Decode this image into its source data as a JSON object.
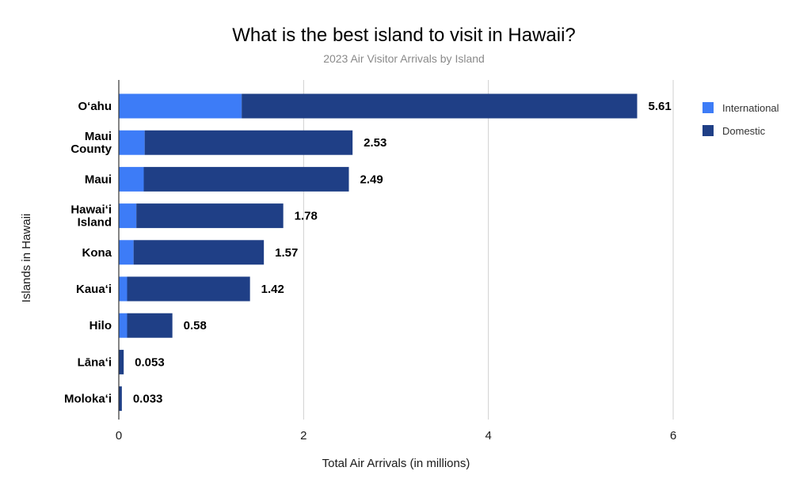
{
  "chart_data": {
    "type": "bar",
    "orientation": "horizontal",
    "stacked": true,
    "title": "What is the best island to visit in Hawaii?",
    "subtitle": "2023 Air Visitor Arrivals by Island",
    "xlabel": "Total Air Arrivals (in millions)",
    "ylabel": "Islands in Hawaii",
    "categories": [
      "O‘ahu",
      "Maui County",
      "Maui",
      "Hawai‘i Island",
      "Kona",
      "Kaua‘i",
      "Hilo",
      "Lāna‘i",
      "Moloka‘i"
    ],
    "category_lines": [
      [
        "O‘ahu"
      ],
      [
        "Maui",
        "County"
      ],
      [
        "Maui"
      ],
      [
        "Hawai‘i",
        "Island"
      ],
      [
        "Kona"
      ],
      [
        "Kaua‘i"
      ],
      [
        "Hilo"
      ],
      [
        "Lāna‘i"
      ],
      [
        "Moloka‘i"
      ]
    ],
    "series": [
      {
        "name": "International",
        "color": "#3d7cf7",
        "values": [
          1.33,
          0.28,
          0.27,
          0.19,
          0.16,
          0.09,
          0.09,
          0.004,
          0.002
        ]
      },
      {
        "name": "Domestic",
        "color": "#1f3f86",
        "values": [
          4.28,
          2.25,
          2.22,
          1.59,
          1.41,
          1.33,
          0.49,
          0.049,
          0.031
        ]
      }
    ],
    "totals": [
      5.61,
      2.53,
      2.49,
      1.78,
      1.57,
      1.42,
      0.58,
      0.053,
      0.033
    ],
    "total_labels": [
      "5.61",
      "2.53",
      "2.49",
      "1.78",
      "1.57",
      "1.42",
      "0.58",
      "0.053",
      "0.033"
    ],
    "xlim": [
      0,
      6
    ],
    "xticks": [
      0,
      2,
      4,
      6
    ],
    "xtick_labels": [
      "0",
      "2",
      "4",
      "6"
    ],
    "grid": true,
    "legend_position": "top-right"
  }
}
